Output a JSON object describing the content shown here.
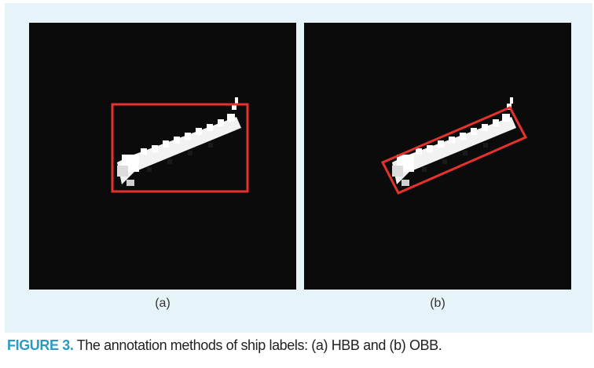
{
  "figure": {
    "label": "FIGURE 3.",
    "caption": " The annotation methods of ship labels: (a) HBB and (b) OBB.",
    "subfigures": [
      {
        "caption": "(a)",
        "box_type": "HBB"
      },
      {
        "caption": "(b)",
        "box_type": "OBB"
      }
    ]
  },
  "colors": {
    "panel_background": "#e6f4f9",
    "image_background": "#0b0b0b",
    "ship": "#ffffff",
    "box": "#e5322d",
    "label_accent": "#2a9bc4"
  }
}
